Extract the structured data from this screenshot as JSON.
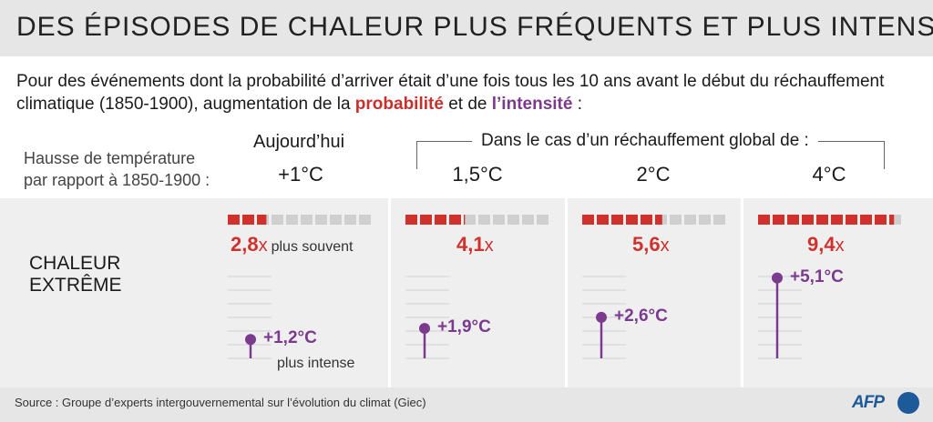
{
  "title": "DES ÉPISODES DE CHALEUR PLUS FRÉQUENTS ET PLUS INTENSES",
  "intro": {
    "text1": "Pour des événements dont la probabilité d’arriver était d’une fois tous les 10 ans avant le début du réchauffement climatique (1850-1900), augmentation de la ",
    "prob": "probabilité",
    "text2": " et de ",
    "intensity": "l’intensité",
    "text3": " :"
  },
  "row_label": [
    "Hausse de température",
    "par rapport à 1850-1900 :"
  ],
  "today_label": "Aujourd’hui",
  "bracket_label": "Dans le cas d’un réchauffement global de :",
  "category": [
    "CHALEUR",
    "EXTRÊME"
  ],
  "frequency_note": "plus souvent",
  "intensity_note": "plus intense",
  "chart_data": {
    "type": "bar",
    "categories": [
      "+1°C",
      "1,5°C",
      "2°C",
      "4°C"
    ],
    "frequency_factor": [
      2.8,
      4.1,
      5.6,
      9.4
    ],
    "frequency_labels": [
      "2,8",
      "4,1",
      "5,6",
      "9,4"
    ],
    "frequency_unit": "x",
    "frequency_scale_max": 10,
    "intensity_increase": [
      1.2,
      1.9,
      2.6,
      5.1
    ],
    "intensity_labels": [
      "+1,2°C",
      "+1,9°C",
      "+2,6°C",
      "+5,1°C"
    ],
    "colors": {
      "frequency": "#d0312d",
      "frequency_empty": "#cfcfcf",
      "intensity": "#7b3a8e"
    }
  },
  "footer": {
    "source": "Source : Groupe d’experts intergouvernemental sur l’évolution du climat (Giec)",
    "logo": "AFP"
  }
}
